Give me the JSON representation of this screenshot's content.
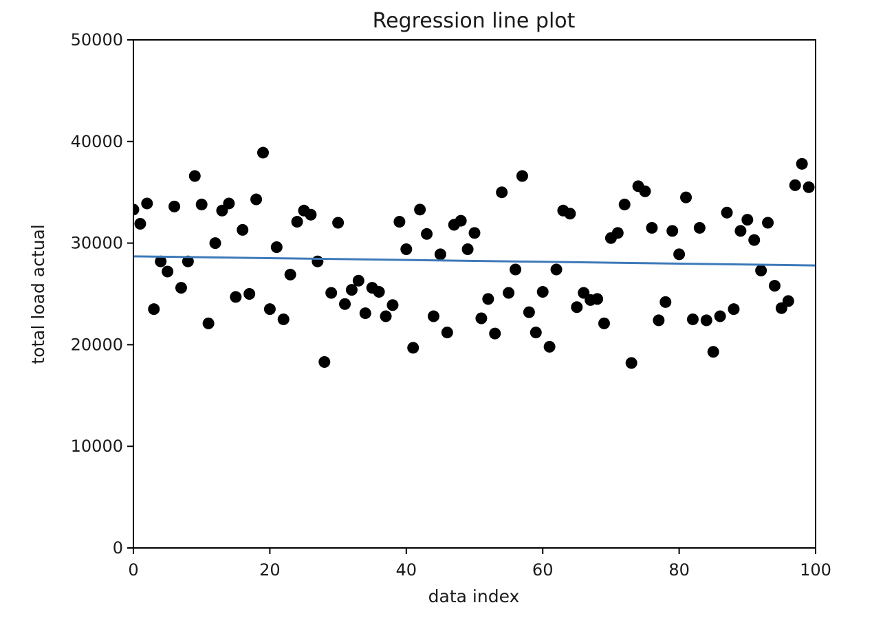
{
  "chart_data": {
    "type": "scatter",
    "title": "Regression line plot",
    "xlabel": "data index",
    "ylabel": "total load actual",
    "xlim": [
      0,
      100
    ],
    "ylim": [
      0,
      50000
    ],
    "xticks": [
      0,
      20,
      40,
      60,
      80,
      100
    ],
    "yticks": [
      0,
      10000,
      20000,
      30000,
      40000,
      50000
    ],
    "xtick_labels": [
      "0",
      "20",
      "40",
      "60",
      "80",
      "100"
    ],
    "ytick_labels": [
      "0",
      "10000",
      "20000",
      "30000",
      "40000",
      "50000"
    ],
    "grid": false,
    "legend": "none",
    "series": [
      {
        "type": "scatter",
        "color": "#000000",
        "x": [
          0,
          1,
          2,
          3,
          4,
          5,
          6,
          7,
          8,
          9,
          10,
          11,
          12,
          13,
          14,
          15,
          16,
          17,
          18,
          19,
          20,
          21,
          22,
          23,
          24,
          25,
          26,
          27,
          28,
          29,
          30,
          31,
          32,
          33,
          34,
          35,
          36,
          37,
          38,
          39,
          40,
          41,
          42,
          43,
          44,
          45,
          46,
          47,
          48,
          49,
          50,
          51,
          52,
          53,
          54,
          55,
          56,
          57,
          58,
          59,
          60,
          61,
          62,
          63,
          64,
          65,
          66,
          67,
          68,
          69,
          70,
          71,
          72,
          73,
          74,
          75,
          76,
          77,
          78,
          79,
          80,
          81,
          82,
          83,
          84,
          85,
          86,
          87,
          88,
          89,
          90,
          91,
          92,
          93,
          94,
          95,
          96,
          97,
          98,
          99
        ],
        "y": [
          33300,
          31900,
          33900,
          23500,
          28200,
          27200,
          33600,
          25600,
          28200,
          36600,
          33800,
          22100,
          30000,
          33200,
          33900,
          24700,
          31300,
          25000,
          34300,
          38900,
          23500,
          29600,
          22500,
          26900,
          32100,
          33200,
          32800,
          28200,
          18300,
          25100,
          32000,
          24000,
          25400,
          26300,
          23100,
          25600,
          25200,
          22800,
          23900,
          32100,
          29400,
          19700,
          33300,
          30900,
          22800,
          28900,
          21200,
          31800,
          32200,
          29400,
          31000,
          22600,
          24500,
          21100,
          35000,
          25100,
          27400,
          36600,
          23200,
          21200,
          25200,
          19800,
          27400,
          33200,
          32900,
          23700,
          25100,
          24400,
          24500,
          22100,
          30500,
          31000,
          33800,
          18200,
          35600,
          35100,
          31500,
          22400,
          24200,
          31200,
          28900,
          34500,
          22500,
          31500,
          22400,
          19300,
          22800,
          33000,
          23500,
          31200,
          32300,
          30300,
          27300,
          32000,
          25800,
          23600,
          24300,
          35700,
          37800,
          35500
        ]
      },
      {
        "type": "line",
        "color": "#3d79b8",
        "x": [
          0,
          100
        ],
        "y": [
          28700,
          27800
        ]
      }
    ]
  }
}
